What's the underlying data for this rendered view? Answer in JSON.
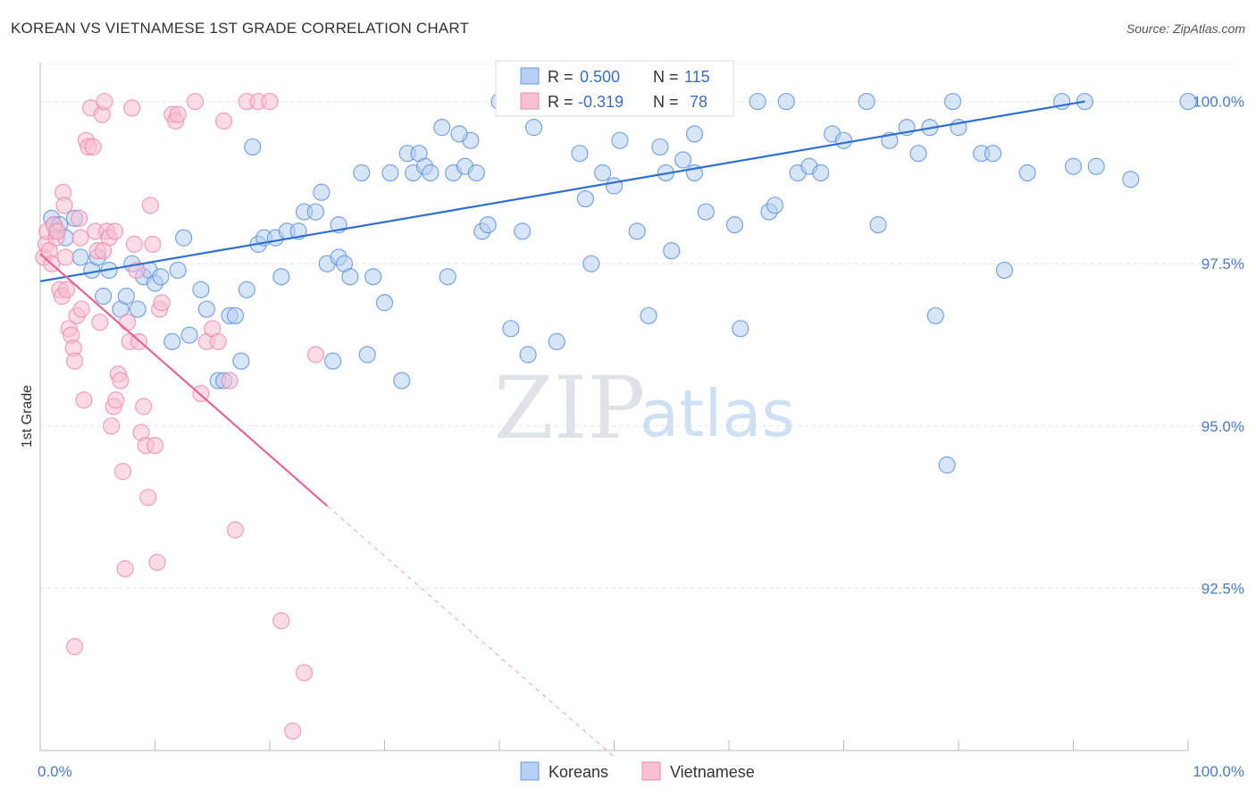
{
  "header": {
    "title": "KOREAN VS VIETNAMESE 1ST GRADE CORRELATION CHART",
    "source": "Source: ZipAtlas.com"
  },
  "watermark": {
    "zip": "ZIP",
    "atlas": "atlas"
  },
  "legend": {
    "r_label": "R =",
    "n_label": "N =",
    "series": [
      {
        "name": "Koreans",
        "r": "0.500",
        "n": "115",
        "color": "#6a9be0",
        "fill": "#b7cff3"
      },
      {
        "name": "Vietnamese",
        "r": "-0.319",
        "n": "78",
        "color": "#ee88aa",
        "fill": "#f7c0d2"
      }
    ]
  },
  "chart_data": {
    "type": "scatter",
    "title": "KOREAN VS VIETNAMESE 1ST GRADE CORRELATION CHART",
    "xlabel": "",
    "ylabel": "1st Grade",
    "xlim": [
      0,
      100
    ],
    "ylim": [
      90.0,
      100.6
    ],
    "x_tick_labels": [
      "0.0%",
      "100.0%"
    ],
    "y_ticks": [
      92.5,
      95.0,
      97.5,
      100.0
    ],
    "y_tick_labels": [
      "92.5%",
      "95.0%",
      "97.5%",
      "100.0%"
    ],
    "grid": true,
    "legend_position": "top-center",
    "series": [
      {
        "name": "Koreans",
        "color": "#5b8fd9",
        "trend": {
          "x": [
            0,
            91
          ],
          "y": [
            97.23,
            100.0
          ]
        },
        "points": [
          [
            1.0,
            98.2
          ],
          [
            1.2,
            98.1
          ],
          [
            1.4,
            98.0
          ],
          [
            1.7,
            98.1
          ],
          [
            2.2,
            97.9
          ],
          [
            3.5,
            97.6
          ],
          [
            4.5,
            97.4
          ],
          [
            5.0,
            97.6
          ],
          [
            5.5,
            97.0
          ],
          [
            6.0,
            97.4
          ],
          [
            7.0,
            96.8
          ],
          [
            7.5,
            97.0
          ],
          [
            8.0,
            97.5
          ],
          [
            9.0,
            97.3
          ],
          [
            9.5,
            97.4
          ],
          [
            10.0,
            97.2
          ],
          [
            10.5,
            97.3
          ],
          [
            11.5,
            96.3
          ],
          [
            12.5,
            97.9
          ],
          [
            13.0,
            96.4
          ],
          [
            14.0,
            97.1
          ],
          [
            14.5,
            96.8
          ],
          [
            15.5,
            95.7
          ],
          [
            16.0,
            95.7
          ],
          [
            16.5,
            96.7
          ],
          [
            17.0,
            96.7
          ],
          [
            17.5,
            96.0
          ],
          [
            18.0,
            97.1
          ],
          [
            18.5,
            99.3
          ],
          [
            19.0,
            97.8
          ],
          [
            19.5,
            97.9
          ],
          [
            20.5,
            97.9
          ],
          [
            21.0,
            97.3
          ],
          [
            21.5,
            98.0
          ],
          [
            22.5,
            98.0
          ],
          [
            23.0,
            98.3
          ],
          [
            24.0,
            98.3
          ],
          [
            24.5,
            98.6
          ],
          [
            25.0,
            97.5
          ],
          [
            25.5,
            96.0
          ],
          [
            26.0,
            97.6
          ],
          [
            26.5,
            97.5
          ],
          [
            27.0,
            97.3
          ],
          [
            28.0,
            98.9
          ],
          [
            28.5,
            96.1
          ],
          [
            29.0,
            97.3
          ],
          [
            30.0,
            96.9
          ],
          [
            30.5,
            98.9
          ],
          [
            31.5,
            95.7
          ],
          [
            32.0,
            99.2
          ],
          [
            32.5,
            98.9
          ],
          [
            33.0,
            99.2
          ],
          [
            33.5,
            99.0
          ],
          [
            34.0,
            98.9
          ],
          [
            35.0,
            99.6
          ],
          [
            35.5,
            97.3
          ],
          [
            36.0,
            98.9
          ],
          [
            37.0,
            99.0
          ],
          [
            37.5,
            99.4
          ],
          [
            38.0,
            98.9
          ],
          [
            38.5,
            98.0
          ],
          [
            39.0,
            98.1
          ],
          [
            40.0,
            100.0
          ],
          [
            41.0,
            96.5
          ],
          [
            42.0,
            98.0
          ],
          [
            42.5,
            96.1
          ],
          [
            43.0,
            99.6
          ],
          [
            44.0,
            100.0
          ],
          [
            44.5,
            100.0
          ],
          [
            45.0,
            96.3
          ],
          [
            45.5,
            100.0
          ],
          [
            46.0,
            100.0
          ],
          [
            47.0,
            99.2
          ],
          [
            47.5,
            98.5
          ],
          [
            48.0,
            97.5
          ],
          [
            49.0,
            98.9
          ],
          [
            50.0,
            98.7
          ],
          [
            50.5,
            99.4
          ],
          [
            51.0,
            100.0
          ],
          [
            52.0,
            98.0
          ],
          [
            53.0,
            96.7
          ],
          [
            54.5,
            98.9
          ],
          [
            55.0,
            97.7
          ],
          [
            56.0,
            99.1
          ],
          [
            57.0,
            98.9
          ],
          [
            58.0,
            98.3
          ],
          [
            59.0,
            100.0
          ],
          [
            60.5,
            98.1
          ],
          [
            61.0,
            96.5
          ],
          [
            62.5,
            100.0
          ],
          [
            63.5,
            98.3
          ],
          [
            64.0,
            98.4
          ],
          [
            65.0,
            100.0
          ],
          [
            66.0,
            98.9
          ],
          [
            67.0,
            99.0
          ],
          [
            68.0,
            98.9
          ],
          [
            69.0,
            99.5
          ],
          [
            70.0,
            99.4
          ],
          [
            72.0,
            100.0
          ],
          [
            73.0,
            98.1
          ],
          [
            74.0,
            99.4
          ],
          [
            75.5,
            99.6
          ],
          [
            76.5,
            99.2
          ],
          [
            77.5,
            99.6
          ],
          [
            78.0,
            96.7
          ],
          [
            79.0,
            94.4
          ],
          [
            79.5,
            100.0
          ],
          [
            80.0,
            99.6
          ],
          [
            82.0,
            99.2
          ],
          [
            83.0,
            99.2
          ],
          [
            84.0,
            97.4
          ],
          [
            86.0,
            98.9
          ],
          [
            90.0,
            99.0
          ],
          [
            92.0,
            99.0
          ],
          [
            95.0,
            98.8
          ],
          [
            89.0,
            100.0
          ],
          [
            91.0,
            100.0
          ],
          [
            100.0,
            100.0
          ],
          [
            57.0,
            99.5
          ],
          [
            54.0,
            99.3
          ],
          [
            36.5,
            99.5
          ],
          [
            26.0,
            98.1
          ],
          [
            12.0,
            97.4
          ],
          [
            8.5,
            96.8
          ],
          [
            3.0,
            98.2
          ]
        ]
      },
      {
        "name": "Vietnamese",
        "color": "#ee88aa",
        "trend": {
          "x": [
            0,
            25
          ],
          "y": [
            97.65,
            93.77
          ]
        },
        "trend_extension": {
          "x": [
            25,
            50
          ],
          "y": [
            93.77,
            89.9
          ]
        },
        "points": [
          [
            0.3,
            97.6
          ],
          [
            0.5,
            97.8
          ],
          [
            0.6,
            98.0
          ],
          [
            0.8,
            97.7
          ],
          [
            1.0,
            97.5
          ],
          [
            1.2,
            98.1
          ],
          [
            1.4,
            97.9
          ],
          [
            1.5,
            98.0
          ],
          [
            1.7,
            97.1
          ],
          [
            1.9,
            97.0
          ],
          [
            2.0,
            98.6
          ],
          [
            2.1,
            98.4
          ],
          [
            2.2,
            97.6
          ],
          [
            2.3,
            97.1
          ],
          [
            2.5,
            96.5
          ],
          [
            2.7,
            96.4
          ],
          [
            2.9,
            96.2
          ],
          [
            3.0,
            96.0
          ],
          [
            3.2,
            96.7
          ],
          [
            3.4,
            98.2
          ],
          [
            3.5,
            97.9
          ],
          [
            3.6,
            96.8
          ],
          [
            3.8,
            95.4
          ],
          [
            4.0,
            99.4
          ],
          [
            4.2,
            99.3
          ],
          [
            4.4,
            99.9
          ],
          [
            4.6,
            99.3
          ],
          [
            4.8,
            98.0
          ],
          [
            5.0,
            97.7
          ],
          [
            5.2,
            96.6
          ],
          [
            5.4,
            99.8
          ],
          [
            5.6,
            100.0
          ],
          [
            5.8,
            98.0
          ],
          [
            6.0,
            97.9
          ],
          [
            6.2,
            95.0
          ],
          [
            6.4,
            95.3
          ],
          [
            6.6,
            95.4
          ],
          [
            6.8,
            95.8
          ],
          [
            7.0,
            95.7
          ],
          [
            7.2,
            94.3
          ],
          [
            7.4,
            92.8
          ],
          [
            7.6,
            96.6
          ],
          [
            7.8,
            96.3
          ],
          [
            8.0,
            99.9
          ],
          [
            8.2,
            97.8
          ],
          [
            8.4,
            97.4
          ],
          [
            8.6,
            96.3
          ],
          [
            8.8,
            94.9
          ],
          [
            9.0,
            95.3
          ],
          [
            9.2,
            94.7
          ],
          [
            9.4,
            93.9
          ],
          [
            9.6,
            98.4
          ],
          [
            9.8,
            97.8
          ],
          [
            10.0,
            94.7
          ],
          [
            10.2,
            92.9
          ],
          [
            10.4,
            96.8
          ],
          [
            10.6,
            96.9
          ],
          [
            11.5,
            99.8
          ],
          [
            11.8,
            99.7
          ],
          [
            12.0,
            99.8
          ],
          [
            13.5,
            100.0
          ],
          [
            14.0,
            95.5
          ],
          [
            14.5,
            96.3
          ],
          [
            15.0,
            96.5
          ],
          [
            15.5,
            96.3
          ],
          [
            16.0,
            99.7
          ],
          [
            16.5,
            95.7
          ],
          [
            17.0,
            93.4
          ],
          [
            18.0,
            100.0
          ],
          [
            19.0,
            100.0
          ],
          [
            20.0,
            100.0
          ],
          [
            21.0,
            92.0
          ],
          [
            22.0,
            90.3
          ],
          [
            23.0,
            91.2
          ],
          [
            24.0,
            96.1
          ],
          [
            3.0,
            91.6
          ],
          [
            5.5,
            97.7
          ],
          [
            6.5,
            98.0
          ]
        ]
      }
    ]
  }
}
